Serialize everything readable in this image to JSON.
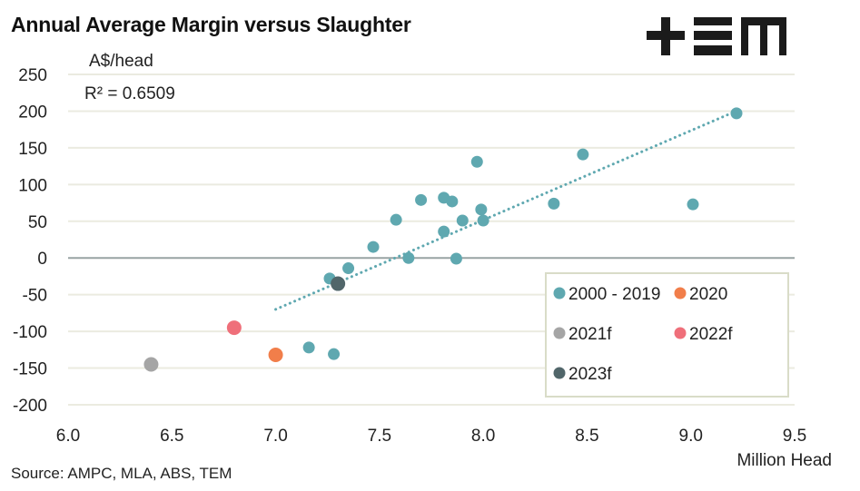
{
  "header": {
    "title": "Annual Average Margin versus Slaughter",
    "logo_text": "TEM"
  },
  "footer": {
    "source": "Source: AMPC, MLA, ABS, TEM"
  },
  "chart_data": {
    "type": "scatter",
    "title": "Annual Average Margin versus Slaughter",
    "xlabel": "Million Head",
    "ylabel": "A$/head",
    "xlim": [
      6.0,
      9.5
    ],
    "ylim": [
      -200,
      250
    ],
    "xticks": [
      "6.0",
      "6.5",
      "7.0",
      "7.5",
      "8.0",
      "8.5",
      "9.0",
      "9.5"
    ],
    "xtick_values": [
      6.0,
      6.5,
      7.0,
      7.5,
      8.0,
      8.5,
      9.0,
      9.5
    ],
    "yticks": [
      "250",
      "200",
      "150",
      "100",
      "50",
      "0",
      "-50",
      "-100",
      "-150",
      "-200"
    ],
    "ytick_values": [
      250,
      200,
      150,
      100,
      50,
      0,
      -50,
      -100,
      -150,
      -200
    ],
    "grid": true,
    "annotation": "R² = 0.6509",
    "legend_position": "bottom-right",
    "series": [
      {
        "name": "2000 - 2019",
        "color": "#5fa8b0",
        "points": [
          [
            7.16,
            -122
          ],
          [
            7.28,
            -131
          ],
          [
            7.26,
            -28
          ],
          [
            7.35,
            -14
          ],
          [
            7.47,
            15
          ],
          [
            7.58,
            52
          ],
          [
            7.64,
            0
          ],
          [
            7.7,
            79
          ],
          [
            7.81,
            82
          ],
          [
            7.81,
            36
          ],
          [
            7.85,
            77
          ],
          [
            7.87,
            -1
          ],
          [
            7.9,
            51
          ],
          [
            7.97,
            131
          ],
          [
            7.99,
            66
          ],
          [
            8.0,
            51
          ],
          [
            8.34,
            74
          ],
          [
            8.48,
            141
          ],
          [
            9.01,
            73
          ],
          [
            9.22,
            197
          ]
        ]
      },
      {
        "name": "2020",
        "color": "#f17e4a",
        "points": [
          [
            7.0,
            -132
          ]
        ]
      },
      {
        "name": "2021f",
        "color": "#a5a5a5",
        "points": [
          [
            6.4,
            -145
          ]
        ]
      },
      {
        "name": "2022f",
        "color": "#ef6f7a",
        "points": [
          [
            6.8,
            -95
          ]
        ]
      },
      {
        "name": "2023f",
        "color": "#51666a",
        "points": [
          [
            7.3,
            -35
          ]
        ]
      }
    ],
    "trendline": {
      "series": "2000 - 2019",
      "type": "linear",
      "style": "dotted",
      "color": "#5fa8b0",
      "from": [
        7.0,
        -70
      ],
      "to": [
        9.21,
        199
      ],
      "r_squared": 0.6509
    }
  },
  "colors": {
    "grid": "#ebebe0",
    "zero_line": "#99a3a3",
    "legend_border": "#d9dcc8",
    "text": "#222222"
  }
}
